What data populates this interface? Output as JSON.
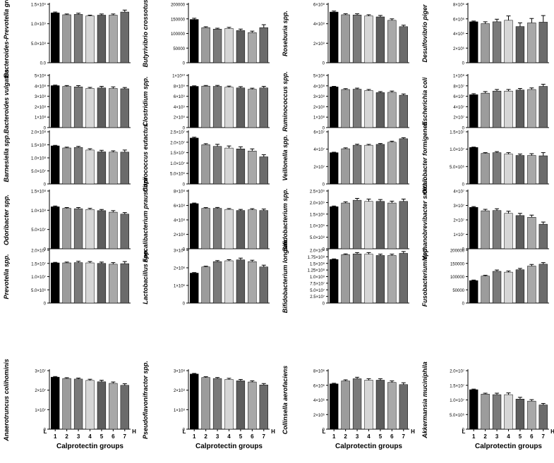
{
  "figure": {
    "group_labels": [
      "1",
      "2",
      "3",
      "4",
      "5",
      "6",
      "7"
    ],
    "xlabel": "Calprotectin groups",
    "low_label": "L",
    "high_label": "H",
    "bar_colors": [
      "#000000",
      "#9c9c9c",
      "#7a7a7a",
      "#d6d6d6",
      "#5d5d5d",
      "#a8a8a8",
      "#6b6b6b"
    ]
  },
  "chart_data": [
    {
      "type": "bar",
      "ylabel": "Bacteroides-Prevotella group",
      "yticks": [
        "0.0",
        "5.0×10⁸",
        "1.0×10⁹",
        "1.5×10⁹"
      ],
      "ylim": [
        0,
        1500000000.0
      ],
      "values": [
        1280000000.0,
        1230000000.0,
        1240000000.0,
        1200000000.0,
        1220000000.0,
        1220000000.0,
        1300000000.0
      ],
      "errors": [
        20000000.0,
        20000000.0,
        30000000.0,
        20000000.0,
        30000000.0,
        30000000.0,
        50000000.0
      ]
    },
    {
      "type": "bar",
      "ylabel": "Butyrivibrio crossotus",
      "yticks": [
        "0",
        "50000",
        "100000",
        "150000",
        "200000"
      ],
      "ylim": [
        0,
        200000
      ],
      "values": [
        148000,
        120000,
        115000,
        117000,
        110000,
        103000,
        120000
      ],
      "errors": [
        4000,
        3000,
        3000,
        4000,
        5000,
        5000,
        10000
      ]
    },
    {
      "type": "bar",
      "ylabel": "Roseburia spp.",
      "yticks": [
        "0",
        "2×10⁸",
        "4×10⁸",
        "6×10⁸"
      ],
      "ylim": [
        0,
        600000000.0
      ],
      "values": [
        520000000.0,
        492000000.0,
        490000000.0,
        480000000.0,
        470000000.0,
        435000000.0,
        370000000.0
      ],
      "errors": [
        10000000.0,
        10000000.0,
        12000000.0,
        12000000.0,
        15000000.0,
        15000000.0,
        15000000.0
      ]
    },
    {
      "type": "bar",
      "ylabel": "Desulfovibrio piger",
      "yticks": [
        "0",
        "2×10⁶",
        "4×10⁶",
        "6×10⁶",
        "8×10⁶"
      ],
      "ylim": [
        0,
        8000000.0
      ],
      "values": [
        5600000.0,
        5350000.0,
        5600000.0,
        5800000.0,
        4950000.0,
        5450000.0,
        5550000.0
      ],
      "errors": [
        100000.0,
        250000.0,
        350000.0,
        600000.0,
        500000.0,
        600000.0,
        900000.0
      ]
    },
    {
      "type": "bar",
      "ylabel": "Bacteroides vulgatus",
      "yticks": [
        "0",
        "1×10⁸",
        "2×10⁸",
        "3×10⁸",
        "4×10⁸",
        "5×10⁸"
      ],
      "ylim": [
        0,
        500000000.0
      ],
      "values": [
        402000000.0,
        395000000.0,
        390000000.0,
        375000000.0,
        380000000.0,
        375000000.0,
        372000000.0
      ],
      "errors": [
        5000000.0,
        8000000.0,
        12000000.0,
        10000000.0,
        15000000.0,
        15000000.0,
        12000000.0
      ]
    },
    {
      "type": "bar",
      "ylabel": "Clostridium spp.",
      "yticks": [
        "0",
        "2×10⁹",
        "4×10⁹",
        "6×10⁹",
        "8×10⁹",
        "1×10¹⁰"
      ],
      "ylim": [
        0,
        10000000000.0
      ],
      "values": [
        7900000000.0,
        7950000000.0,
        7900000000.0,
        7750000000.0,
        7600000000.0,
        7350000000.0,
        7600000000.0
      ],
      "errors": [
        100000000.0,
        120000000.0,
        180000000.0,
        200000000.0,
        250000000.0,
        200000000.0,
        300000000.0
      ]
    },
    {
      "type": "bar",
      "ylabel": "Ruminococcus spp.",
      "yticks": [
        "0",
        "1×10⁸",
        "2×10⁸",
        "3×10⁸",
        "4×10⁸",
        "5×10⁸"
      ],
      "ylim": [
        0,
        500000000.0
      ],
      "values": [
        390000000.0,
        365000000.0,
        368000000.0,
        355000000.0,
        335000000.0,
        338000000.0,
        310000000.0
      ],
      "errors": [
        5000000.0,
        8000000.0,
        10000000.0,
        10000000.0,
        10000000.0,
        12000000.0,
        12000000.0
      ]
    },
    {
      "type": "bar",
      "ylabel": "Escherichia coli",
      "yticks": [
        "0",
        "2×10⁷",
        "4×10⁷",
        "6×10⁷",
        "8×10⁷",
        "1×10⁸"
      ],
      "ylim": [
        0,
        100000000.0
      ],
      "values": [
        63000000.0,
        66000000.0,
        70000000.0,
        70000000.0,
        72000000.0,
        73000000.0,
        79000000.0
      ],
      "errors": [
        2000000.0,
        3000000.0,
        3000000.0,
        3000000.0,
        3000000.0,
        3000000.0,
        4000000.0
      ]
    },
    {
      "type": "bar",
      "ylabel": "Barnesiella spp.",
      "yticks": [
        "0",
        "5.0×10⁷",
        "1.0×10⁸",
        "1.5×10⁸",
        "2.0×10⁸"
      ],
      "ylim": [
        0,
        200000000.0
      ],
      "values": [
        146000000.0,
        138000000.0,
        140000000.0,
        130000000.0,
        123000000.0,
        122000000.0,
        122000000.0
      ],
      "errors": [
        2000000.0,
        3000000.0,
        4000000.0,
        5000000.0,
        6000000.0,
        5000000.0,
        8000000.0
      ]
    },
    {
      "type": "bar",
      "ylabel": "Coprococcus eutactus",
      "yticks": [
        "0",
        "5.0×10⁶",
        "1.0×10⁷",
        "1.5×10⁷",
        "2.0×10⁷",
        "2.5×10⁷"
      ],
      "ylim": [
        0,
        25000000.0
      ],
      "values": [
        22000000.0,
        18800000.0,
        18000000.0,
        17200000.0,
        16800000.0,
        15800000.0,
        13000000.0
      ],
      "errors": [
        400000.0,
        500000.0,
        1000000.0,
        1000000.0,
        1000000.0,
        1000000.0,
        1000000.0
      ]
    },
    {
      "type": "bar",
      "ylabel": "Veillonella spp.",
      "yticks": [
        "0",
        "2×10⁷",
        "4×10⁷",
        "6×10⁷"
      ],
      "ylim": [
        0,
        60000000.0
      ],
      "values": [
        36000000.0,
        40500000.0,
        44500000.0,
        44500000.0,
        45500000.0,
        48000000.0,
        52000000.0
      ],
      "errors": [
        500000.0,
        1000000.0,
        1200000.0,
        1000000.0,
        1000000.0,
        1200000.0,
        1200000.0
      ]
    },
    {
      "type": "bar",
      "ylabel": "Oxalobacter formigenes",
      "yticks": [
        "0",
        "5.0×10⁶",
        "1.0×10⁷",
        "1.5×10⁷"
      ],
      "ylim": [
        0,
        15000000.0
      ],
      "values": [
        10500000.0,
        8800000.0,
        9000000.0,
        8600000.0,
        8200000.0,
        8200000.0,
        8100000.0
      ],
      "errors": [
        100000.0,
        200000.0,
        300000.0,
        400000.0,
        400000.0,
        500000.0,
        900000.0
      ]
    },
    {
      "type": "bar",
      "ylabel": "Odoribacter spp.",
      "yticks": [
        "0",
        "5.0×10⁷",
        "1.0×10⁸",
        "1.5×10⁸"
      ],
      "ylim": [
        0,
        150000000.0
      ],
      "values": [
        109000000.0,
        105000000.0,
        104000000.0,
        102000000.0,
        99000000.0,
        95000000.0,
        90000000.0
      ],
      "errors": [
        2000000.0,
        2000000.0,
        3000000.0,
        3000000.0,
        3000000.0,
        4000000.0,
        4000000.0
      ]
    },
    {
      "type": "bar",
      "ylabel": "Faecalibacterium prausnitzii",
      "yticks": [
        "0",
        "2×10⁸",
        "4×10⁸",
        "6×10⁸",
        "8×10⁸"
      ],
      "ylim": [
        0,
        800000000.0
      ],
      "values": [
        625000000.0,
        560000000.0,
        560000000.0,
        545000000.0,
        530000000.0,
        540000000.0,
        530000000.0
      ],
      "errors": [
        8000000.0,
        10000000.0,
        12000000.0,
        12000000.0,
        15000000.0,
        15000000.0,
        20000000.0
      ]
    },
    {
      "type": "bar",
      "ylabel": "Bifidobacterium spp.",
      "yticks": [
        "0",
        "5.0×10⁸",
        "1.0×10⁹",
        "1.5×10⁹",
        "2.0×10⁹",
        "2.5×10⁹"
      ],
      "ylim": [
        0,
        2500000000.0
      ],
      "values": [
        1820000000.0,
        1980000000.0,
        2100000000.0,
        2050000000.0,
        2050000000.0,
        1980000000.0,
        2050000000.0
      ],
      "errors": [
        30000000.0,
        50000000.0,
        80000000.0,
        100000000.0,
        80000000.0,
        80000000.0,
        100000000.0
      ]
    },
    {
      "type": "bar",
      "ylabel": "Methanobrevibacter smithii",
      "yticks": [
        "0",
        "1×10⁷",
        "2×10⁷",
        "3×10⁷",
        "4×10⁷"
      ],
      "ylim": [
        0,
        40000000.0
      ],
      "values": [
        28700000.0,
        26300000.0,
        26500000.0,
        24500000.0,
        23000000.0,
        21800000.0,
        17000000.0
      ],
      "errors": [
        500000.0,
        1000000.0,
        1200000.0,
        1500000.0,
        1500000.0,
        1500000.0,
        1500000.0
      ]
    },
    {
      "type": "bar",
      "ylabel": "Prevotella spp.",
      "yticks": [
        "0",
        "5.0×10⁶",
        "1.0×10⁷",
        "1.5×10⁷",
        "2.0×10⁷"
      ],
      "ylim": [
        0,
        20000000.0
      ],
      "values": [
        15200000.0,
        15200000.0,
        15300000.0,
        15200000.0,
        15000000.0,
        14700000.0,
        14900000.0
      ],
      "errors": [
        200000.0,
        300000.0,
        500000.0,
        500000.0,
        500000.0,
        600000.0,
        800000.0
      ]
    },
    {
      "type": "bar",
      "ylabel": "Lactobacillus spp.",
      "yticks": [
        "0",
        "1×10⁶",
        "2×10⁶",
        "3×10⁶"
      ],
      "ylim": [
        0,
        3000000.0
      ],
      "values": [
        1700000.0,
        2050000.0,
        2350000.0,
        2400000.0,
        2450000.0,
        2350000.0,
        2050000.0
      ],
      "errors": [
        30000.0,
        40000.0,
        60000.0,
        60000.0,
        100000.0,
        80000.0,
        100000.0
      ]
    },
    {
      "type": "bar",
      "ylabel": "Bifidobacterium longum",
      "yticks": [
        "0",
        "2.5×10⁷",
        "5.0×10⁷",
        "7.5×10⁷",
        "1.0×10⁸",
        "1.25×10⁸",
        "1.5×10⁸",
        "1.75×10⁸",
        "2.0×10⁸"
      ],
      "ylim": [
        0,
        200000000.0
      ],
      "values": [
        165000000.0,
        183000000.0,
        186000000.0,
        185000000.0,
        180000000.0,
        180000000.0,
        188000000.0
      ],
      "errors": [
        2000000.0,
        3000000.0,
        5000000.0,
        6000000.0,
        5000000.0,
        5000000.0,
        7000000.0
      ]
    },
    {
      "type": "bar",
      "ylabel": "Fusobacterium spp.",
      "yticks": [
        "0",
        "50000",
        "100000",
        "150000",
        "200000"
      ],
      "ylim": [
        0,
        200000
      ],
      "values": [
        85000,
        102000,
        120000,
        117000,
        126000,
        140000,
        147000
      ],
      "errors": [
        2000,
        3000,
        5000,
        4000,
        5000,
        6000,
        6000
      ]
    },
    {
      "type": "bar",
      "ylabel": "Anaerotruncus colihominis",
      "yticks": [
        "0",
        "1×10⁷",
        "2×10⁷",
        "3×10⁷"
      ],
      "ylim": [
        0,
        30000000.0
      ],
      "values": [
        26700000.0,
        26000000.0,
        25700000.0,
        25000000.0,
        24300000.0,
        23500000.0,
        22500000.0
      ],
      "errors": [
        300000.0,
        400000.0,
        500000.0,
        600000.0,
        800000.0,
        700000.0,
        800000.0
      ]
    },
    {
      "type": "bar",
      "ylabel": "Pseudoflavonifractor spp.",
      "yticks": [
        "0",
        "1×10⁸",
        "2×10⁸",
        "3×10⁸"
      ],
      "ylim": [
        0,
        300000000.0
      ],
      "values": [
        283000000.0,
        265000000.0,
        260000000.0,
        255000000.0,
        248000000.0,
        242000000.0,
        227000000.0
      ],
      "errors": [
        3000000.0,
        4000000.0,
        5000000.0,
        6000000.0,
        7000000.0,
        6000000.0,
        7000000.0
      ]
    },
    {
      "type": "bar",
      "ylabel": "Collinsella aerofaciens",
      "yticks": [
        "0",
        "2×10⁶",
        "4×10⁶",
        "6×10⁶",
        "8×10⁶"
      ],
      "ylim": [
        0,
        8000000.0
      ],
      "values": [
        6200000.0,
        6600000.0,
        6900000.0,
        6700000.0,
        6700000.0,
        6400000.0,
        6100000.0
      ],
      "errors": [
        80000.0,
        150000.0,
        200000.0,
        200000.0,
        200000.0,
        200000.0,
        250000.0
      ]
    },
    {
      "type": "bar",
      "ylabel": "Akkermansia muciniphila",
      "yticks": [
        "0",
        "5.0×10⁶",
        "1.0×10⁷",
        "1.5×10⁷",
        "2.0×10⁷"
      ],
      "ylim": [
        0,
        20000000.0
      ],
      "values": [
        13500000.0,
        12000000.0,
        11800000.0,
        11800000.0,
        10300000.0,
        9600000.0,
        8300000.0
      ],
      "errors": [
        200000.0,
        300000.0,
        500000.0,
        600000.0,
        600000.0,
        500000.0,
        500000.0
      ]
    }
  ]
}
